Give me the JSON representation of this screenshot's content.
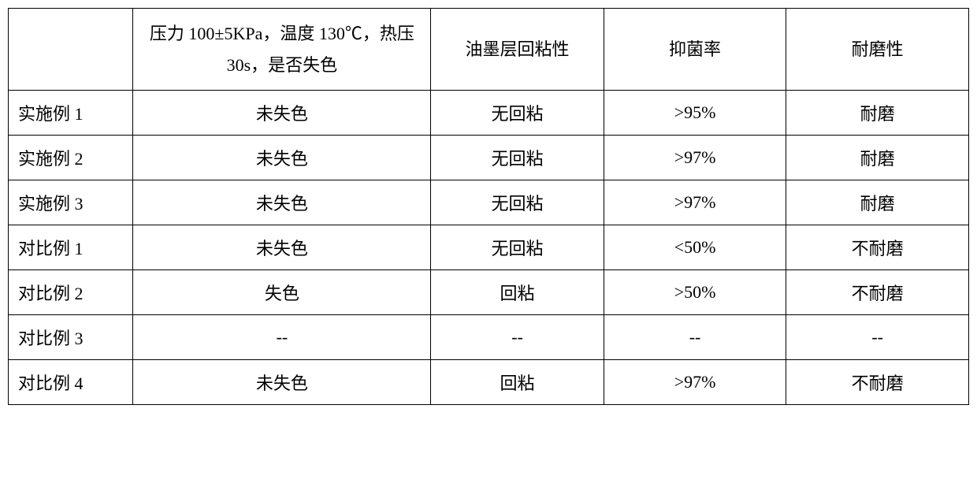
{
  "table": {
    "type": "table",
    "background_color": "#ffffff",
    "border_color": "#000000",
    "text_color": "#000000",
    "font_family": "SimSun",
    "header_fontsize": 22,
    "cell_fontsize": 22,
    "columns": [
      {
        "label": "",
        "width": "13%",
        "align": "left"
      },
      {
        "label": "压力 100±5KPa，温度 130℃，热压 30s，是否失色",
        "width": "31%",
        "align": "center"
      },
      {
        "label": "油墨层回粘性",
        "width": "18%",
        "align": "center"
      },
      {
        "label": "抑菌率",
        "width": "19%",
        "align": "center"
      },
      {
        "label": "耐磨性",
        "width": "19%",
        "align": "center"
      }
    ],
    "rows": [
      {
        "label": "实施例 1",
        "cells": [
          "未失色",
          "无回粘",
          ">95%",
          "耐磨"
        ]
      },
      {
        "label": "实施例 2",
        "cells": [
          "未失色",
          "无回粘",
          ">97%",
          "耐磨"
        ]
      },
      {
        "label": "实施例 3",
        "cells": [
          "未失色",
          "无回粘",
          ">97%",
          "耐磨"
        ]
      },
      {
        "label": "对比例 1",
        "cells": [
          "未失色",
          "无回粘",
          "<50%",
          "不耐磨"
        ]
      },
      {
        "label": "对比例 2",
        "cells": [
          "失色",
          "回粘",
          ">50%",
          "不耐磨"
        ]
      },
      {
        "label": "对比例 3",
        "cells": [
          "--",
          "--",
          "--",
          "--"
        ]
      },
      {
        "label": "对比例 4",
        "cells": [
          "未失色",
          "回粘",
          ">97%",
          "不耐磨"
        ]
      }
    ]
  }
}
